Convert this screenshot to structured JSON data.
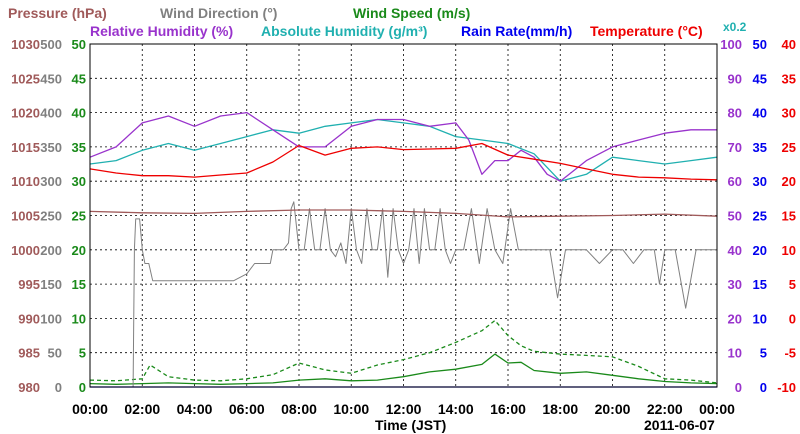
{
  "chart_data": {
    "type": "line",
    "xlabel": "Time (JST)",
    "date": "2011-06-07",
    "scale_note": "x0.2",
    "x_ticks": [
      "00:00",
      "02:00",
      "04:00",
      "06:00",
      "08:00",
      "10:00",
      "12:00",
      "14:00",
      "16:00",
      "18:00",
      "20:00",
      "22:00",
      "00:00"
    ],
    "x_hours_range": [
      0,
      24
    ],
    "axes": {
      "pressure": {
        "label": "Pressure (hPa)",
        "ticks": [
          "1030",
          "1025",
          "1020",
          "1015",
          "1010",
          "1005",
          "1000",
          "995",
          "990",
          "985",
          "980"
        ],
        "range": [
          980,
          1030
        ],
        "color": "#a05a5a"
      },
      "wind_dir": {
        "label": "Wind Direction (°)",
        "ticks": [
          "500",
          "450",
          "400",
          "350",
          "300",
          "250",
          "200",
          "150",
          "100",
          "50",
          "0"
        ],
        "range": [
          0,
          500
        ],
        "color": "#808080"
      },
      "wind_speed": {
        "label": "Wind Speed (m/s)",
        "ticks": [
          "50",
          "45",
          "40",
          "35",
          "30",
          "25",
          "20",
          "15",
          "10",
          "5",
          "0"
        ],
        "range": [
          0,
          50
        ],
        "color": "#1a8a1a"
      },
      "humidity": {
        "label": "Relative Humidity (%)",
        "ticks": [
          "100",
          "90",
          "80",
          "70",
          "60",
          "50",
          "40",
          "30",
          "20",
          "10",
          "0"
        ],
        "range": [
          0,
          100
        ],
        "color": "#9933cc"
      },
      "abs_hum": {
        "label": "Absolute Humidity (g/m³)",
        "color": "#20b0b0"
      },
      "rain": {
        "label": "Rain Rate(mm/h)",
        "ticks": [
          "50",
          "45",
          "40",
          "35",
          "30",
          "25",
          "20",
          "15",
          "10",
          "5",
          "0"
        ],
        "range": [
          0,
          50
        ],
        "color": "#0000ee"
      },
      "temp": {
        "label": "Temperature (°C)",
        "ticks": [
          "40",
          "35",
          "30",
          "25",
          "20",
          "15",
          "10",
          "5",
          "0",
          "-5",
          "-10"
        ],
        "range": [
          -10,
          40
        ],
        "color": "#ee0000"
      }
    },
    "series": [
      {
        "name": "Pressure (hPa)",
        "axis": "pressure",
        "color": "#a05a5a",
        "style": "solid",
        "x": [
          0,
          2,
          4,
          6,
          8,
          10,
          12,
          14,
          16,
          18,
          20,
          22,
          24
        ],
        "y": [
          1005.6,
          1005.4,
          1005.3,
          1005.6,
          1005.8,
          1005.8,
          1005.6,
          1005.3,
          1004.8,
          1004.9,
          1005.0,
          1005.2,
          1004.9
        ]
      },
      {
        "name": "Wind Direction (°)",
        "axis": "wind_dir",
        "color": "#808080",
        "style": "solid",
        "x": [
          0,
          1.5,
          1.65,
          1.7,
          1.75,
          1.9,
          2.0,
          2.1,
          2.25,
          2.4,
          3.0,
          4.0,
          5.0,
          5.5,
          6.0,
          6.3,
          6.9,
          7.0,
          7.4,
          7.6,
          7.7,
          7.8,
          8.0,
          8.2,
          8.4,
          8.6,
          8.8,
          9.0,
          9.2,
          9.4,
          9.6,
          9.8,
          10.0,
          10.2,
          10.4,
          10.6,
          10.8,
          11.0,
          11.2,
          11.4,
          11.6,
          11.8,
          12.0,
          12.2,
          12.4,
          12.6,
          12.8,
          13.0,
          13.2,
          13.4,
          13.6,
          13.8,
          14.0,
          14.3,
          14.6,
          14.9,
          15.2,
          15.5,
          15.8,
          16.1,
          16.4,
          16.7,
          17.0,
          17.3,
          17.6,
          17.9,
          18.2,
          18.5,
          19.0,
          19.5,
          20.0,
          20.4,
          20.8,
          21.2,
          21.6,
          21.8,
          22.0,
          22.4,
          22.8,
          23.2,
          23.6,
          24
        ],
        "y": [
          0,
          0,
          0,
          200,
          245,
          245,
          200,
          180,
          180,
          155,
          155,
          155,
          155,
          155,
          165,
          180,
          180,
          200,
          200,
          210,
          260,
          270,
          200,
          200,
          260,
          200,
          200,
          260,
          200,
          190,
          210,
          180,
          260,
          200,
          180,
          260,
          200,
          200,
          260,
          160,
          260,
          200,
          180,
          200,
          260,
          180,
          260,
          200,
          200,
          260,
          200,
          180,
          200,
          200,
          260,
          180,
          260,
          200,
          180,
          260,
          200,
          200,
          200,
          200,
          200,
          130,
          200,
          200,
          200,
          180,
          200,
          200,
          180,
          200,
          200,
          150,
          200,
          200,
          115,
          200,
          200,
          200
        ]
      },
      {
        "name": "Wind Speed (m/s)",
        "axis": "wind_speed",
        "color": "#1a8a1a",
        "style": "solid",
        "x": [
          0,
          1,
          2,
          3,
          4,
          5,
          6,
          7,
          8,
          9,
          10,
          11,
          12,
          13,
          14,
          15,
          15.5,
          16,
          16.5,
          17,
          18,
          19,
          20,
          21,
          22,
          23,
          24
        ],
        "y": [
          0.5,
          0.4,
          0.5,
          0.6,
          0.5,
          0.4,
          0.5,
          0.6,
          1.0,
          1.2,
          0.9,
          1.0,
          1.5,
          2.2,
          2.6,
          3.3,
          4.8,
          3.5,
          3.6,
          2.4,
          2.0,
          2.2,
          1.7,
          1.2,
          0.8,
          0.6,
          0.5
        ]
      },
      {
        "name": "Wind Speed gust (m/s)",
        "axis": "wind_speed",
        "color": "#1a8a1a",
        "style": "dashed",
        "x": [
          0,
          1,
          2,
          2.3,
          3,
          4,
          5,
          6,
          7,
          8,
          9,
          10,
          11,
          12,
          13,
          14,
          15,
          15.5,
          16,
          16.5,
          17,
          18,
          19,
          20,
          21,
          22,
          23,
          24
        ],
        "y": [
          1.0,
          0.9,
          1.2,
          3.2,
          1.5,
          1.0,
          0.9,
          1.2,
          1.8,
          3.5,
          2.5,
          2.0,
          3.2,
          4.0,
          5.0,
          6.5,
          8.2,
          9.7,
          7.5,
          6.0,
          5.2,
          4.8,
          4.6,
          4.4,
          3.0,
          1.2,
          1.0,
          0.6
        ]
      },
      {
        "name": "Relative Humidity (%)",
        "axis": "humidity",
        "color": "#9933cc",
        "style": "solid",
        "x": [
          0,
          1,
          2,
          3,
          4,
          5,
          6,
          7,
          8,
          9,
          10,
          11,
          12,
          13,
          14,
          14.5,
          15,
          15.5,
          16,
          16.5,
          17,
          17.5,
          18,
          19,
          20,
          21,
          22,
          23,
          24
        ],
        "y": [
          67,
          70,
          77,
          79,
          76,
          79,
          80,
          75,
          70,
          70,
          76,
          78,
          78,
          76,
          77,
          72,
          62,
          66,
          66,
          69,
          67,
          62,
          60,
          66,
          70,
          72,
          74,
          75,
          75
        ]
      },
      {
        "name": "Absolute Humidity (g/m³)",
        "axis": "humidity",
        "color": "#20b0b0",
        "style": "solid",
        "x": [
          0,
          1,
          2,
          3,
          4,
          5,
          6,
          7,
          8,
          9,
          10,
          11,
          12,
          13,
          14,
          15,
          16,
          17,
          18,
          19,
          20,
          21,
          22,
          23,
          24
        ],
        "y": [
          65,
          66,
          69,
          71,
          69,
          71,
          73,
          75,
          74,
          76,
          77,
          78,
          77,
          76,
          73,
          72,
          71,
          68,
          60,
          62,
          67,
          66,
          65,
          66,
          67
        ]
      },
      {
        "name": "Rain Rate(mm/h)",
        "axis": "rain",
        "color": "#0000ee",
        "style": "solid",
        "x": [
          0,
          24
        ],
        "y": [
          0,
          0
        ]
      },
      {
        "name": "Temperature (°C)",
        "axis": "temp",
        "color": "#ee0000",
        "style": "solid",
        "x": [
          0,
          1,
          2,
          3,
          4,
          5,
          6,
          7,
          8,
          9,
          10,
          11,
          12,
          13,
          14,
          15,
          16,
          17,
          18,
          19,
          20,
          21,
          22,
          23,
          24
        ],
        "y": [
          21.8,
          21.2,
          20.8,
          20.8,
          20.6,
          20.9,
          21.2,
          22.8,
          25.2,
          23.8,
          24.8,
          25.0,
          24.6,
          24.7,
          24.8,
          25.5,
          23.8,
          23.2,
          22.6,
          21.8,
          21.0,
          20.6,
          20.5,
          20.3,
          20.2
        ]
      }
    ]
  }
}
